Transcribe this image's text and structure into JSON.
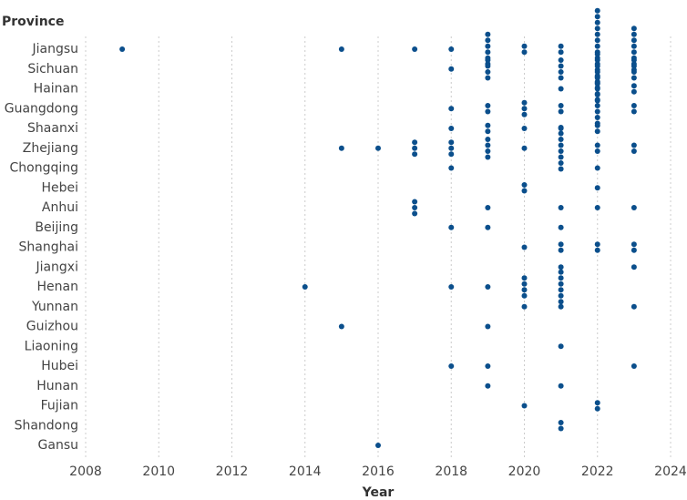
{
  "chart_data": {
    "type": "dotstack",
    "title_y": "Province",
    "xlabel": "Year",
    "color": "#0b4f8c",
    "xlim": [
      2008,
      2024
    ],
    "xticks": [
      2008,
      2010,
      2012,
      2014,
      2016,
      2018,
      2020,
      2022,
      2024
    ],
    "grid": true,
    "categories": [
      "Jiangsu",
      "Sichuan",
      "Hainan",
      "Guangdong",
      "Shaanxi",
      "Zhejiang",
      "Chongqing",
      "Hebei",
      "Anhui",
      "Beijing",
      "Shanghai",
      "Jiangxi",
      "Henan",
      "Yunnan",
      "Guizhou",
      "Liaoning",
      "Hubei",
      "Hunan",
      "Fujian",
      "Shandong",
      "Gansu"
    ],
    "rows": [
      {
        "years": [
          2009,
          2015,
          2017,
          2018,
          2019,
          2020,
          2021,
          2022,
          2023
        ],
        "counts": [
          1,
          1,
          1,
          1,
          6,
          2,
          2,
          14,
          8
        ]
      },
      {
        "years": [
          2018,
          2019,
          2021,
          2022,
          2023
        ],
        "counts": [
          1,
          4,
          4,
          6,
          4
        ]
      },
      {
        "years": [
          2021,
          2022,
          2023
        ],
        "counts": [
          1,
          5,
          2
        ]
      },
      {
        "years": [
          2018,
          2019,
          2020,
          2021,
          2022,
          2023
        ],
        "counts": [
          1,
          2,
          3,
          2,
          6,
          2
        ]
      },
      {
        "years": [
          2018,
          2019,
          2020,
          2021,
          2022
        ],
        "counts": [
          1,
          2,
          1,
          1,
          2
        ]
      },
      {
        "years": [
          2015,
          2016,
          2017,
          2018,
          2019,
          2020,
          2021,
          2022,
          2023
        ],
        "counts": [
          1,
          1,
          3,
          3,
          4,
          1,
          8,
          2,
          2
        ]
      },
      {
        "years": [
          2018,
          2022
        ],
        "counts": [
          1,
          1
        ]
      },
      {
        "years": [
          2020,
          2022
        ],
        "counts": [
          2,
          1
        ]
      },
      {
        "years": [
          2017,
          2019,
          2021,
          2022,
          2023
        ],
        "counts": [
          3,
          1,
          1,
          1,
          1
        ]
      },
      {
        "years": [
          2018,
          2019,
          2021
        ],
        "counts": [
          1,
          1,
          1
        ]
      },
      {
        "years": [
          2020,
          2021,
          2022,
          2023
        ],
        "counts": [
          1,
          2,
          2,
          2
        ]
      },
      {
        "years": [
          2021,
          2023
        ],
        "counts": [
          1,
          1
        ]
      },
      {
        "years": [
          2014,
          2018,
          2019,
          2020,
          2021
        ],
        "counts": [
          1,
          1,
          1,
          4,
          6
        ]
      },
      {
        "years": [
          2020,
          2021,
          2023
        ],
        "counts": [
          1,
          1,
          1
        ]
      },
      {
        "years": [
          2015,
          2019
        ],
        "counts": [
          1,
          1
        ]
      },
      {
        "years": [
          2021
        ],
        "counts": [
          1
        ]
      },
      {
        "years": [
          2018,
          2019,
          2023
        ],
        "counts": [
          1,
          1,
          1
        ]
      },
      {
        "years": [
          2019,
          2021
        ],
        "counts": [
          1,
          1
        ]
      },
      {
        "years": [
          2020,
          2022
        ],
        "counts": [
          1,
          2
        ]
      },
      {
        "years": [
          2021
        ],
        "counts": [
          2
        ]
      },
      {
        "years": [
          2016
        ],
        "counts": [
          1
        ]
      }
    ]
  }
}
